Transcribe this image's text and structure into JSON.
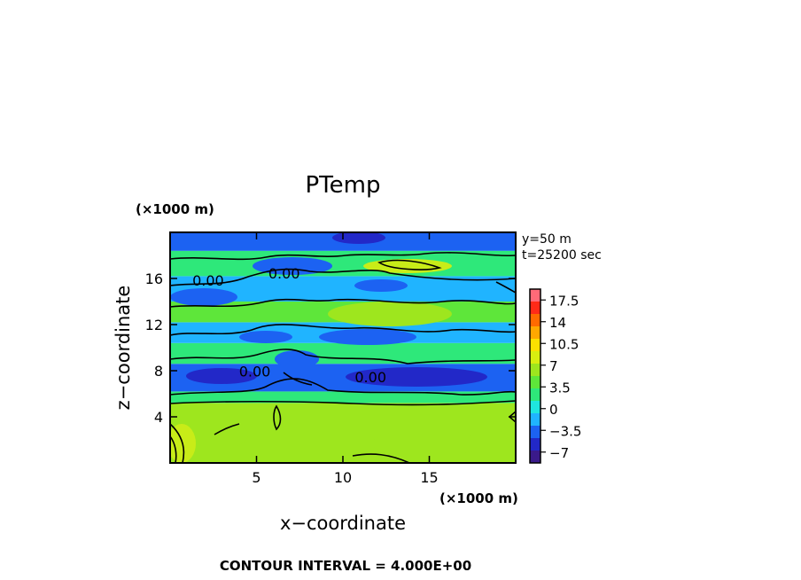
{
  "chart_data": {
    "type": "heatmap",
    "title": "PTemp",
    "xlabel": "x−coordinate",
    "ylabel": "z−coordinate",
    "x_unit": "(×1000 m)",
    "y_unit": "(×1000 m)",
    "xlim": [
      0,
      20
    ],
    "ylim": [
      0,
      20
    ],
    "x_ticks": [
      5,
      10,
      15
    ],
    "y_ticks": [
      4,
      8,
      12,
      16
    ],
    "info_lines": [
      "y=50  m",
      "t=25200 sec"
    ],
    "footer": "CONTOUR INTERVAL = 4.000E+00",
    "colorbar": {
      "tick_labels": [
        "17.5",
        "14",
        "10.5",
        "7",
        "3.5",
        "0",
        "−3.5",
        "−7"
      ],
      "tick_values": [
        17.5,
        14,
        10.5,
        7,
        3.5,
        0,
        -3.5,
        -7
      ],
      "range": [
        -8.75,
        19.25
      ],
      "colors": [
        "#3a1a8a",
        "#2228c8",
        "#1c62f2",
        "#20b4ff",
        "#1fe6de",
        "#2ee87a",
        "#5ee63a",
        "#9ee61e",
        "#d8ee10",
        "#fce000",
        "#ffa800",
        "#ff6a00",
        "#ff2a18",
        "#ff6a78"
      ]
    },
    "contour_labels": [
      {
        "text": "0.00",
        "x": 2.2,
        "z": 15.4
      },
      {
        "text": "0.00",
        "x": 6.6,
        "z": 16.0
      },
      {
        "text": "0.00",
        "x": 4.9,
        "z": 7.5
      },
      {
        "text": "0.00",
        "x": 11.6,
        "z": 7.0
      }
    ],
    "layers": [
      {
        "z0": 0,
        "z1": 5.2,
        "value": 5.5
      },
      {
        "z0": 5.2,
        "z1": 6.2,
        "value": 2.0
      },
      {
        "z0": 6.2,
        "z1": 8.6,
        "value": -3.0
      },
      {
        "z0": 8.6,
        "z1": 10.4,
        "value": 1.5
      },
      {
        "z0": 10.4,
        "z1": 12.2,
        "value": -0.8
      },
      {
        "z0": 12.2,
        "z1": 14.0,
        "value": 3.5
      },
      {
        "z0": 14.0,
        "z1": 16.2,
        "value": -1.5
      },
      {
        "z0": 16.2,
        "z1": 18.4,
        "value": 1.5
      },
      {
        "z0": 18.4,
        "z1": 20,
        "value": -3.0
      }
    ]
  }
}
